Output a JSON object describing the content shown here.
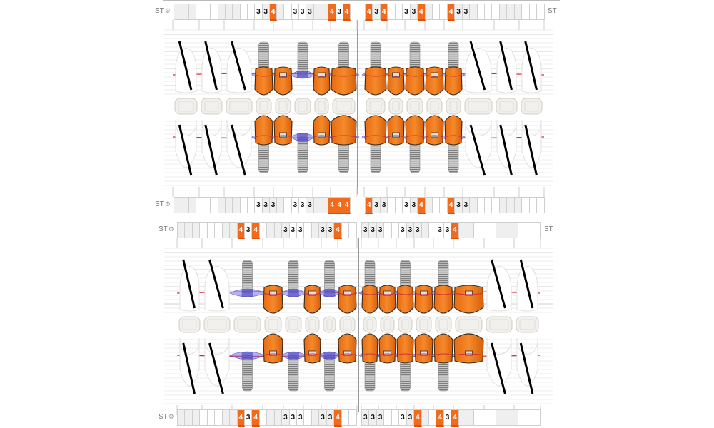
{
  "colors": {
    "probing_high": "#f26b1d",
    "crown": "#f07a1a",
    "gum_margin": "#d0303a",
    "gingiva": "#7b72e0",
    "implant": "#a9a9a9",
    "missing_mark": "#000000"
  },
  "strip_label": "ST",
  "strip_icon": "gear-icon",
  "charts": [
    {
      "strips": [
        {
          "left": [
            "",
            "",
            "",
            "",
            "",
            "",
            "",
            "",
            "",
            "",
            "",
            "3",
            "3",
            "4",
            "",
            "",
            "3",
            "3",
            "3",
            "",
            "",
            "4",
            "3",
            "4"
          ],
          "right": [
            "4",
            "3",
            "4",
            "",
            "",
            "3",
            "3",
            "4",
            "",
            "",
            "",
            "4",
            "3",
            "3",
            "",
            "",
            "",
            "",
            "",
            "",
            "",
            "",
            "",
            ""
          ]
        },
        {
          "left": [
            "",
            "",
            "",
            "",
            "",
            "",
            "",
            "",
            "",
            "",
            "",
            "3",
            "3",
            "3",
            "",
            "",
            "3",
            "3",
            "3",
            "",
            "",
            "4",
            "4",
            "4"
          ],
          "right": [
            "4",
            "3",
            "3",
            "",
            "",
            "3",
            "3",
            "4",
            "",
            "",
            "",
            "4",
            "3",
            "3",
            "",
            "",
            "",
            "",
            "",
            "",
            "",
            "",
            "",
            ""
          ]
        }
      ],
      "upper": {
        "left": [
          "missing",
          "missing",
          "missing",
          "implant-crown",
          "pontic",
          "implant",
          "pontic",
          "implant-crown"
        ],
        "right": [
          "implant-crown",
          "pontic",
          "implant-crown",
          "pontic",
          "implant-crown",
          "missing",
          "missing",
          "missing"
        ]
      },
      "lower": {
        "left": [
          "missing",
          "missing",
          "missing",
          "implant-crown",
          "pontic",
          "implant",
          "pontic",
          "implant-crown"
        ],
        "right": [
          "implant-crown",
          "pontic",
          "implant-crown",
          "pontic",
          "implant-crown",
          "missing",
          "missing",
          "missing"
        ]
      }
    },
    {
      "strips": [
        {
          "left": [
            "",
            "",
            "",
            "",
            "",
            "",
            "",
            "",
            "4",
            "3",
            "4",
            "",
            "",
            "",
            "3",
            "3",
            "3",
            "",
            "",
            "3",
            "3",
            "4",
            "",
            ""
          ],
          "right": [
            "3",
            "3",
            "3",
            "",
            "",
            "3",
            "3",
            "3",
            "",
            "",
            "3",
            "3",
            "4",
            "",
            "",
            "",
            "",
            "",
            "",
            "",
            "",
            "",
            "",
            ""
          ]
        },
        {
          "left": [
            "",
            "",
            "",
            "",
            "",
            "",
            "",
            "",
            "4",
            "3",
            "4",
            "",
            "",
            "",
            "3",
            "3",
            "3",
            "",
            "",
            "3",
            "3",
            "4",
            "",
            ""
          ],
          "right": [
            "3",
            "3",
            "3",
            "",
            "",
            "3",
            "3",
            "4",
            "",
            "",
            "4",
            "3",
            "4",
            "",
            "",
            "",
            "",
            "",
            "",
            "",
            "",
            "",
            "",
            ""
          ]
        }
      ],
      "upper": {
        "left": [
          "missing",
          "missing",
          "implant",
          "pontic",
          "implant",
          "pontic",
          "implant",
          "pontic"
        ],
        "right": [
          "implant-crown",
          "pontic",
          "implant-crown",
          "pontic",
          "implant-crown",
          "pontic",
          "missing",
          "missing"
        ]
      },
      "lower": {
        "left": [
          "missing",
          "missing",
          "implant",
          "pontic",
          "implant",
          "pontic",
          "implant",
          "pontic"
        ],
        "right": [
          "implant-crown",
          "pontic",
          "implant-crown",
          "pontic",
          "implant-crown",
          "pontic",
          "missing",
          "missing"
        ]
      }
    }
  ]
}
